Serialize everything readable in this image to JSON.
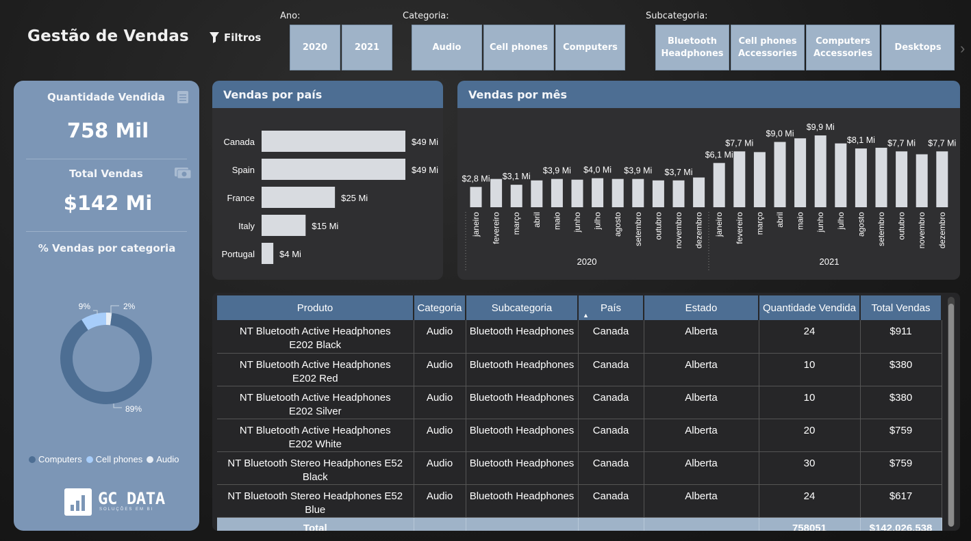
{
  "header": {
    "title": "Gestão de Vendas",
    "filters_label": "Filtros"
  },
  "slicers": {
    "ano": {
      "label": "Ano:",
      "options": [
        "2020",
        "2021"
      ]
    },
    "categoria": {
      "label": "Categoria:",
      "options": [
        "Audio",
        "Cell phones",
        "Computers"
      ]
    },
    "subcategoria": {
      "label": "Subcategoria:",
      "options": [
        "Bluetooth Headphones",
        "Cell phones Accessories",
        "Computers Accessories",
        "Desktops"
      ]
    }
  },
  "kpis": {
    "quantidade": {
      "label": "Quantidade Vendida",
      "value": "758 Mil"
    },
    "total": {
      "label": "Total Vendas",
      "value": "$142 Mi"
    }
  },
  "donut": {
    "title": "% Vendas por categoria",
    "slices": [
      {
        "name": "Computers",
        "label": "89%",
        "value": 89,
        "color": "#4d6e93"
      },
      {
        "name": "Cell phones",
        "label": "9%",
        "value": 9,
        "color": "#a7cdfa"
      },
      {
        "name": "Audio",
        "label": "2%",
        "value": 2,
        "color": "#e8eef5"
      }
    ]
  },
  "brand": {
    "name": "GC DATA",
    "tagline": "SOLUÇÕES EM BI"
  },
  "chart_data": [
    {
      "type": "bar",
      "orientation": "horizontal",
      "title": "Vendas por país",
      "categories": [
        "Canada",
        "Spain",
        "France",
        "Italy",
        "Portugal"
      ],
      "values": [
        49,
        49,
        25,
        15,
        4
      ],
      "data_labels": [
        "$49 Mi",
        "$49 Mi",
        "$25 Mi",
        "$15 Mi",
        "$4 Mi"
      ],
      "unit": "Mi",
      "color": "#d8dbe0"
    },
    {
      "type": "bar",
      "title": "Vendas por mês",
      "years": [
        "2020",
        "2021"
      ],
      "months": [
        "janeiro",
        "fevereiro",
        "março",
        "abril",
        "maio",
        "junho",
        "julho",
        "agosto",
        "setembro",
        "outubro",
        "novembro",
        "dezembro"
      ],
      "values": [
        2.8,
        3.9,
        3.1,
        3.7,
        3.9,
        3.8,
        4.0,
        3.9,
        3.9,
        3.7,
        3.7,
        4.1,
        6.1,
        7.7,
        7.6,
        9.0,
        9.5,
        9.9,
        8.8,
        8.1,
        8.2,
        7.7,
        7.3,
        7.7
      ],
      "data_labels": [
        "$2,8 Mi",
        "",
        "$3,1 Mi",
        "",
        "$3,9 Mi",
        "",
        "$4,0 Mi",
        "",
        "$3,9 Mi",
        "",
        "$3,7 Mi",
        "",
        "$6,1 Mi",
        "$7,7 Mi",
        "",
        "$9,0 Mi",
        "",
        "$9,9 Mi",
        "",
        "$8,1 Mi",
        "",
        "$7,7 Mi",
        "",
        "$7,7 Mi"
      ],
      "unit": "Mi",
      "ylim": [
        0,
        10
      ],
      "color": "#d8dbe0"
    }
  ],
  "table": {
    "columns": [
      "Produto",
      "Categoria",
      "Subcategoria",
      "País",
      "Estado",
      "Quantidade Vendida",
      "Total Vendas"
    ],
    "rows": [
      [
        "NT Bluetooth Active Headphones E202 Black",
        "Audio",
        "Bluetooth Headphones",
        "Canada",
        "Alberta",
        "24",
        "$911"
      ],
      [
        "NT Bluetooth Active Headphones E202 Red",
        "Audio",
        "Bluetooth Headphones",
        "Canada",
        "Alberta",
        "10",
        "$380"
      ],
      [
        "NT Bluetooth Active Headphones E202 Silver",
        "Audio",
        "Bluetooth Headphones",
        "Canada",
        "Alberta",
        "10",
        "$380"
      ],
      [
        "NT Bluetooth Active Headphones E202 White",
        "Audio",
        "Bluetooth Headphones",
        "Canada",
        "Alberta",
        "20",
        "$759"
      ],
      [
        "NT Bluetooth Stereo Headphones E52 Black",
        "Audio",
        "Bluetooth Headphones",
        "Canada",
        "Alberta",
        "30",
        "$759"
      ],
      [
        "NT Bluetooth Stereo Headphones E52 Blue",
        "Audio",
        "Bluetooth Headphones",
        "Canada",
        "Alberta",
        "24",
        "$617"
      ]
    ],
    "total": {
      "label": "Total",
      "quantidade": "758051",
      "vendas": "$142.026.538"
    }
  }
}
